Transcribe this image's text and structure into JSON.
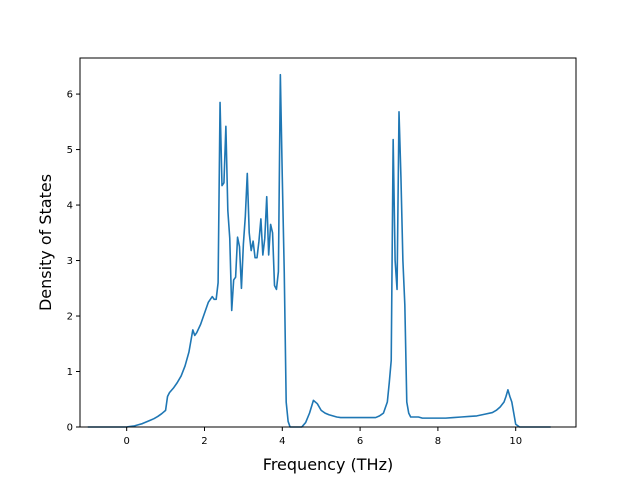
{
  "chart_data": {
    "type": "line",
    "xlabel": "Frequency (THz)",
    "ylabel": "Density of States",
    "xlim": [
      -1.2,
      11.55
    ],
    "ylim": [
      0,
      6.65
    ],
    "xticks": [
      0,
      2,
      4,
      6,
      8,
      10
    ],
    "yticks": [
      0,
      1,
      2,
      3,
      4,
      5,
      6
    ],
    "grid": false,
    "line_color": "#1f77b4",
    "series": [
      {
        "x": [
          -1.0,
          -0.8,
          -0.6,
          -0.4,
          -0.2,
          0.0,
          0.1,
          0.2,
          0.3,
          0.4,
          0.5,
          0.6,
          0.7,
          0.8,
          0.9,
          1.0,
          1.05,
          1.1,
          1.2,
          1.3,
          1.4,
          1.5,
          1.6,
          1.65,
          1.7,
          1.75,
          1.8,
          1.9,
          2.0,
          2.1,
          2.2,
          2.25,
          2.3,
          2.35,
          2.4,
          2.45,
          2.5,
          2.55,
          2.6,
          2.65,
          2.7,
          2.75,
          2.8,
          2.85,
          2.9,
          2.95,
          3.0,
          3.05,
          3.1,
          3.15,
          3.2,
          3.25,
          3.3,
          3.35,
          3.4,
          3.45,
          3.5,
          3.55,
          3.6,
          3.65,
          3.7,
          3.75,
          3.8,
          3.85,
          3.9,
          3.95,
          4.0,
          4.05,
          4.1,
          4.15,
          4.2,
          4.3,
          4.4,
          4.5,
          4.6,
          4.7,
          4.8,
          4.9,
          5.0,
          5.1,
          5.2,
          5.3,
          5.4,
          5.5,
          5.6,
          5.7,
          5.8,
          6.0,
          6.2,
          6.4,
          6.5,
          6.6,
          6.7,
          6.75,
          6.8,
          6.85,
          6.9,
          6.95,
          7.0,
          7.05,
          7.1,
          7.15,
          7.2,
          7.25,
          7.3,
          7.4,
          7.5,
          7.6,
          7.7,
          7.8,
          8.0,
          8.2,
          8.4,
          8.6,
          8.8,
          9.0,
          9.2,
          9.4,
          9.5,
          9.6,
          9.7,
          9.75,
          9.8,
          9.85,
          9.9,
          9.95,
          10.0,
          10.1,
          10.5,
          10.9
        ],
        "y": [
          0.0,
          0.0,
          0.0,
          0.0,
          0.0,
          0.0,
          0.01,
          0.02,
          0.04,
          0.06,
          0.09,
          0.12,
          0.15,
          0.19,
          0.24,
          0.3,
          0.55,
          0.62,
          0.7,
          0.8,
          0.92,
          1.1,
          1.35,
          1.55,
          1.75,
          1.65,
          1.7,
          1.85,
          2.05,
          2.25,
          2.35,
          2.3,
          2.3,
          2.6,
          5.85,
          4.35,
          4.4,
          5.42,
          3.9,
          3.4,
          2.1,
          2.65,
          2.7,
          3.42,
          3.25,
          2.5,
          3.3,
          3.8,
          4.57,
          3.5,
          3.18,
          3.35,
          3.05,
          3.05,
          3.35,
          3.75,
          3.1,
          3.4,
          4.15,
          3.1,
          3.65,
          3.5,
          2.55,
          2.48,
          2.8,
          6.35,
          4.5,
          2.8,
          0.45,
          0.1,
          0.0,
          0.0,
          0.0,
          0.0,
          0.08,
          0.25,
          0.48,
          0.42,
          0.3,
          0.25,
          0.22,
          0.2,
          0.18,
          0.17,
          0.17,
          0.17,
          0.17,
          0.17,
          0.17,
          0.17,
          0.2,
          0.25,
          0.45,
          0.8,
          1.2,
          5.18,
          3.0,
          2.48,
          5.68,
          4.5,
          3.0,
          2.2,
          0.45,
          0.25,
          0.18,
          0.18,
          0.18,
          0.16,
          0.16,
          0.16,
          0.16,
          0.16,
          0.17,
          0.18,
          0.19,
          0.2,
          0.23,
          0.26,
          0.3,
          0.36,
          0.45,
          0.55,
          0.67,
          0.55,
          0.45,
          0.25,
          0.05,
          0.0,
          0.0,
          0.0
        ]
      }
    ]
  }
}
